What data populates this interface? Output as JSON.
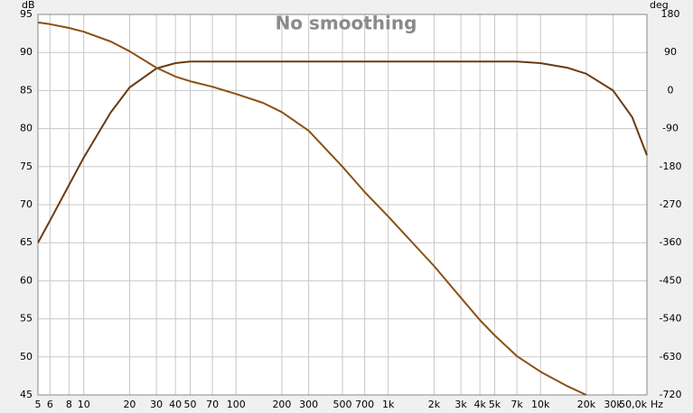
{
  "chart_data": {
    "type": "line",
    "title": "No smoothing",
    "y_label": "dB",
    "y2_label": "deg",
    "x_label": "Hz",
    "log_x": true,
    "grid": true,
    "x": [
      5,
      6,
      8,
      10,
      15,
      20,
      30,
      40,
      50,
      70,
      100,
      150,
      200,
      300,
      500,
      700,
      1000,
      2000,
      3000,
      4000,
      5000,
      7000,
      10000,
      15000,
      20000,
      30000,
      40000,
      50000
    ],
    "series": [
      {
        "color": "#6b3a10",
        "values": [
          65.0,
          67.9,
          72.6,
          76.2,
          82.1,
          85.4,
          87.9,
          88.6,
          88.8,
          88.8,
          88.8,
          88.8,
          88.8,
          88.8,
          88.8,
          88.8,
          88.8,
          88.8,
          88.8,
          88.8,
          88.8,
          88.8,
          88.6,
          88.0,
          87.2,
          85.0,
          81.5,
          76.5
        ]
      },
      {
        "color": "#8b5012",
        "axis": "y2",
        "values": [
          161,
          157,
          148,
          139,
          116,
          93,
          54,
          33,
          22,
          9,
          -8,
          -29,
          -51,
          -95,
          -180,
          -240,
          -298,
          -415,
          -490,
          -543,
          -579,
          -628,
          -665,
          -699,
          -720,
          null,
          null,
          null
        ]
      }
    ],
    "xlim": [
      5,
      50000
    ],
    "xticks": [
      5,
      6,
      8,
      10,
      20,
      30,
      40,
      50,
      70,
      100,
      200,
      300,
      500,
      700,
      {
        "value": 1000,
        "label": "1k"
      },
      {
        "value": 2000,
        "label": "2k"
      },
      {
        "value": 3000,
        "label": "3k"
      },
      {
        "value": 4000,
        "label": "4k"
      },
      {
        "value": 5000,
        "label": "5k"
      },
      {
        "value": 7000,
        "label": "7k"
      },
      {
        "value": 10000,
        "label": "10k"
      },
      {
        "value": 20000,
        "label": "20k"
      },
      {
        "value": 30000,
        "label": "30k"
      },
      {
        "value": 50000,
        "label": "50,0k"
      }
    ],
    "ylim": [
      45,
      95
    ],
    "yticks": [
      45,
      50,
      55,
      60,
      65,
      70,
      75,
      80,
      85,
      90,
      95
    ],
    "y2lim": [
      -720,
      180
    ],
    "y2ticks": [
      -720,
      -630,
      -540,
      -450,
      -360,
      -270,
      -180,
      -90,
      0,
      90,
      180
    ]
  }
}
